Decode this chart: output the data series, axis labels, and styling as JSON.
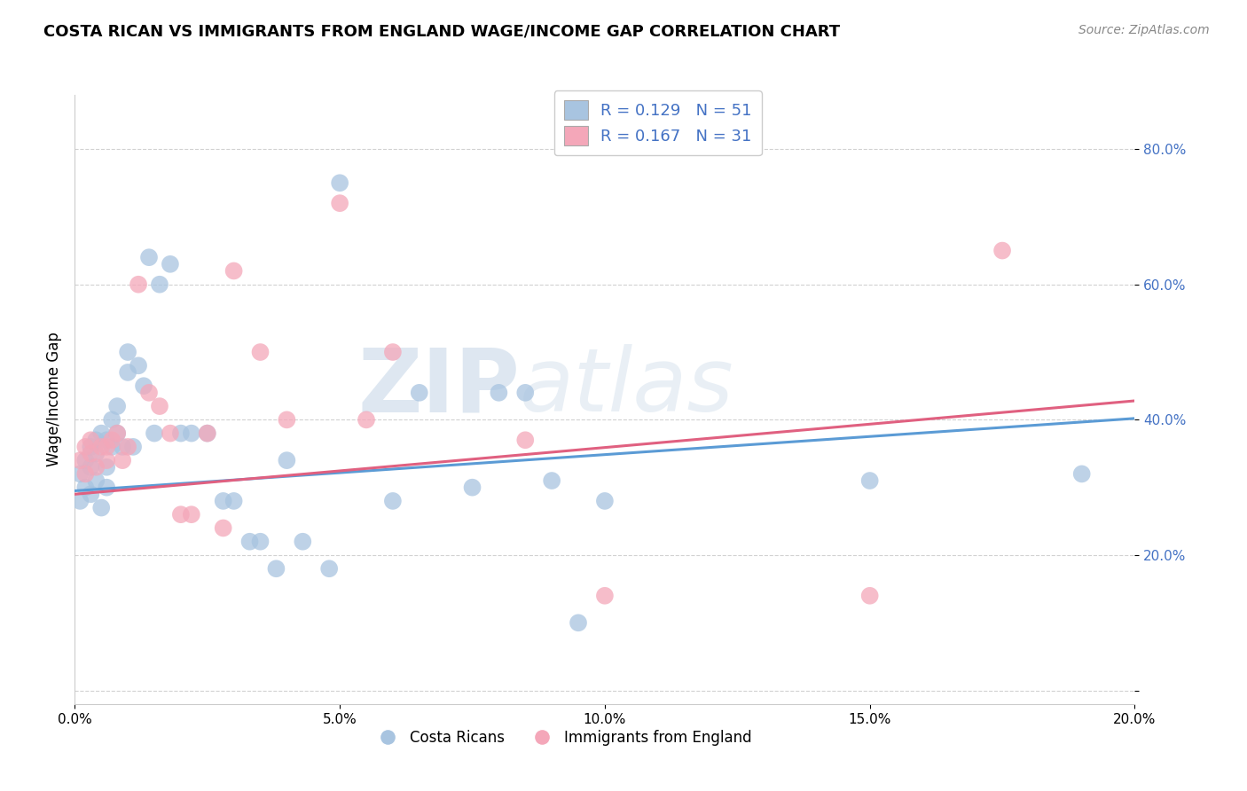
{
  "title": "COSTA RICAN VS IMMIGRANTS FROM ENGLAND WAGE/INCOME GAP CORRELATION CHART",
  "source": "Source: ZipAtlas.com",
  "ylabel": "Wage/Income Gap",
  "xlim": [
    0.0,
    0.2
  ],
  "ylim": [
    -0.02,
    0.88
  ],
  "yticks": [
    0.0,
    0.2,
    0.4,
    0.6,
    0.8
  ],
  "xticks": [
    0.0,
    0.05,
    0.1,
    0.15,
    0.2
  ],
  "xtick_labels": [
    "0.0%",
    "5.0%",
    "10.0%",
    "15.0%",
    "20.0%"
  ],
  "ytick_labels": [
    "",
    "20.0%",
    "40.0%",
    "60.0%",
    "80.0%"
  ],
  "blue_color": "#a8c4e0",
  "pink_color": "#f4a7b9",
  "blue_line_color": "#5b9bd5",
  "pink_line_color": "#e06080",
  "blue_R": 0.129,
  "blue_N": 51,
  "pink_R": 0.167,
  "pink_N": 31,
  "blue_scatter_x": [
    0.001,
    0.001,
    0.002,
    0.002,
    0.003,
    0.003,
    0.003,
    0.004,
    0.004,
    0.004,
    0.005,
    0.005,
    0.006,
    0.006,
    0.006,
    0.007,
    0.007,
    0.008,
    0.008,
    0.009,
    0.01,
    0.01,
    0.011,
    0.012,
    0.013,
    0.014,
    0.015,
    0.016,
    0.018,
    0.02,
    0.022,
    0.025,
    0.028,
    0.03,
    0.033,
    0.035,
    0.038,
    0.04,
    0.043,
    0.048,
    0.05,
    0.06,
    0.065,
    0.075,
    0.08,
    0.085,
    0.09,
    0.095,
    0.1,
    0.15,
    0.19
  ],
  "blue_scatter_y": [
    0.32,
    0.28,
    0.34,
    0.3,
    0.36,
    0.33,
    0.29,
    0.35,
    0.31,
    0.37,
    0.38,
    0.27,
    0.37,
    0.33,
    0.3,
    0.4,
    0.36,
    0.38,
    0.42,
    0.36,
    0.47,
    0.5,
    0.36,
    0.48,
    0.45,
    0.64,
    0.38,
    0.6,
    0.63,
    0.38,
    0.38,
    0.38,
    0.28,
    0.28,
    0.22,
    0.22,
    0.18,
    0.34,
    0.22,
    0.18,
    0.75,
    0.28,
    0.44,
    0.3,
    0.44,
    0.44,
    0.31,
    0.1,
    0.28,
    0.31,
    0.32
  ],
  "pink_scatter_x": [
    0.001,
    0.002,
    0.002,
    0.003,
    0.003,
    0.004,
    0.005,
    0.006,
    0.006,
    0.007,
    0.008,
    0.009,
    0.01,
    0.012,
    0.014,
    0.016,
    0.018,
    0.02,
    0.022,
    0.025,
    0.028,
    0.03,
    0.035,
    0.04,
    0.05,
    0.055,
    0.06,
    0.085,
    0.1,
    0.15,
    0.175
  ],
  "pink_scatter_y": [
    0.34,
    0.36,
    0.32,
    0.35,
    0.37,
    0.33,
    0.36,
    0.34,
    0.36,
    0.37,
    0.38,
    0.34,
    0.36,
    0.6,
    0.44,
    0.42,
    0.38,
    0.26,
    0.26,
    0.38,
    0.24,
    0.62,
    0.5,
    0.4,
    0.72,
    0.4,
    0.5,
    0.37,
    0.14,
    0.14,
    0.65
  ],
  "legend_label_blue": "Costa Ricans",
  "legend_label_pink": "Immigrants from England",
  "watermark_zip": "ZIP",
  "watermark_atlas": "atlas",
  "background_color": "#ffffff",
  "grid_color": "#cccccc"
}
